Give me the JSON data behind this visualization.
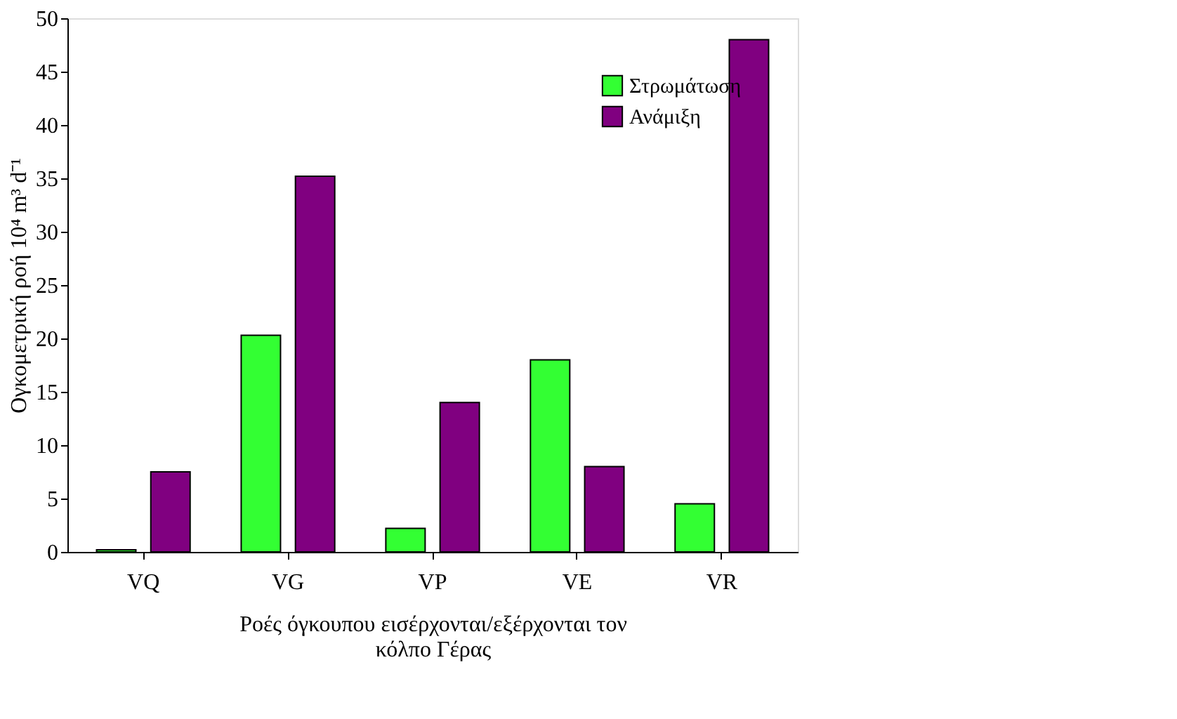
{
  "chart_data": {
    "type": "bar",
    "xlabel": "Ροές όγκουπου εισέρχονται/εξέρχονται τον κόλπο Γέρας",
    "ylabel": "Ογκομετρική ροή 10⁴ m³ d⁻¹",
    "categories": [
      "VQ",
      "VG",
      "VP",
      "VE",
      "VR"
    ],
    "series": [
      {
        "name": "Στρωμάτωση",
        "color": "#33ff33",
        "values": [
          0.2,
          20.3,
          2.2,
          18,
          4.5
        ]
      },
      {
        "name": "Ανάμιξη",
        "color": "#800080",
        "values": [
          7.5,
          35.2,
          14,
          8,
          48
        ]
      }
    ],
    "ylim": [
      0,
      50
    ],
    "yticks": [
      0,
      5,
      10,
      15,
      20,
      25,
      30,
      35,
      40,
      45,
      50
    ],
    "grid": false,
    "legend": "top right"
  }
}
